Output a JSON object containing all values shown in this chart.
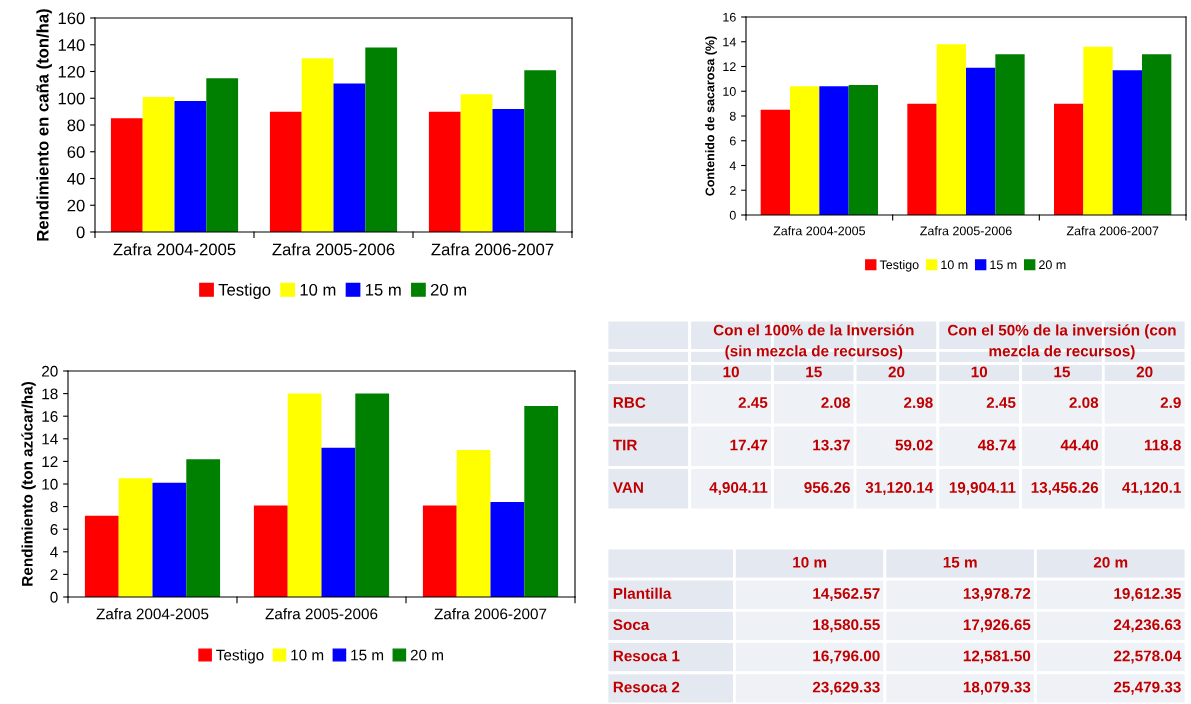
{
  "chart_data": [
    {
      "type": "bar",
      "ylabel": "Rendimiento en caña (ton/ha)",
      "categories": [
        "Zafra 2004-2005",
        "Zafra 2005-2006",
        "Zafra 2006-2007"
      ],
      "series": [
        {
          "name": "Testigo",
          "color": "#ff0000",
          "values": [
            85,
            90,
            90
          ]
        },
        {
          "name": "10 m",
          "color": "#ffff00",
          "values": [
            101,
            130,
            103
          ]
        },
        {
          "name": "15 m",
          "color": "#0000ff",
          "values": [
            98,
            111,
            92
          ]
        },
        {
          "name": "20 m",
          "color": "#008000",
          "values": [
            115,
            138,
            121
          ]
        }
      ],
      "ylim": [
        0,
        160
      ],
      "yticks": [
        0,
        20,
        40,
        60,
        80,
        100,
        120,
        140,
        160
      ],
      "legend": "bottom",
      "grid": false
    },
    {
      "type": "bar",
      "ylabel": "Contenido de sacarosa (%)",
      "categories": [
        "Zafra 2004-2005",
        "Zafra 2005-2006",
        "Zafra 2006-2007"
      ],
      "series": [
        {
          "name": "Testigo",
          "color": "#ff0000",
          "values": [
            8.5,
            9.0,
            9.0
          ]
        },
        {
          "name": "10 m",
          "color": "#ffff00",
          "values": [
            10.4,
            13.8,
            13.6
          ]
        },
        {
          "name": "15 m",
          "color": "#0000ff",
          "values": [
            10.4,
            11.9,
            11.7
          ]
        },
        {
          "name": "20 m",
          "color": "#008000",
          "values": [
            10.5,
            13.0,
            13.0
          ]
        }
      ],
      "ylim": [
        0,
        16
      ],
      "yticks": [
        0,
        2,
        4,
        6,
        8,
        10,
        12,
        14,
        16
      ],
      "legend": "bottom",
      "grid": false
    },
    {
      "type": "bar",
      "ylabel": "Rendimiento (ton azúcar/ha)",
      "categories": [
        "Zafra 2004-2005",
        "Zafra 2005-2006",
        "Zafra 2006-2007"
      ],
      "series": [
        {
          "name": "Testigo",
          "color": "#ff0000",
          "values": [
            7.2,
            8.1,
            8.1
          ]
        },
        {
          "name": "10 m",
          "color": "#ffff00",
          "values": [
            10.5,
            18.0,
            13.0
          ]
        },
        {
          "name": "15 m",
          "color": "#0000ff",
          "values": [
            10.1,
            13.2,
            8.4
          ]
        },
        {
          "name": "20 m",
          "color": "#008000",
          "values": [
            12.2,
            18.0,
            16.9
          ]
        }
      ],
      "ylim": [
        0,
        20
      ],
      "yticks": [
        0,
        2,
        4,
        6,
        8,
        10,
        12,
        14,
        16,
        18,
        20
      ],
      "legend": "bottom",
      "grid": false
    },
    {
      "type": "other",
      "annotations": [
        "Con el 100% de la Inversión\n(sin mezcla de recursos)",
        "Con el 50% de la inversión (con\nmezcla de recursos)"
      ],
      "categories": [
        "10",
        "15",
        "20",
        "10",
        "15",
        "20"
      ],
      "y_categories": [
        "RBC",
        "TIR",
        "VAN"
      ],
      "cell_labels": [
        [
          "2.45",
          "2.08",
          "2.98",
          "2.45",
          "2.08",
          "2.9"
        ],
        [
          "17.47",
          "13.37",
          "59.02",
          "48.74",
          "44.40",
          "118.8"
        ],
        [
          "4,904.11",
          "956.26",
          "31,120.14",
          "19,904.11",
          "13,456.26",
          "41,120.1"
        ]
      ]
    },
    {
      "type": "other",
      "categories": [
        "10 m",
        "15 m",
        "20 m"
      ],
      "y_categories": [
        "Plantilla",
        "Soca",
        "Resoca 1",
        "Resoca 2"
      ],
      "cell_labels": [
        [
          "14,562.57",
          "13,978.72",
          "19,612.35"
        ],
        [
          "18,580.55",
          "17,926.65",
          "24,236.63"
        ],
        [
          "16,796.00",
          "12,581.50",
          "22,578.04"
        ],
        [
          "23,629.33",
          "18,079.33",
          "25,479.33"
        ]
      ]
    }
  ]
}
